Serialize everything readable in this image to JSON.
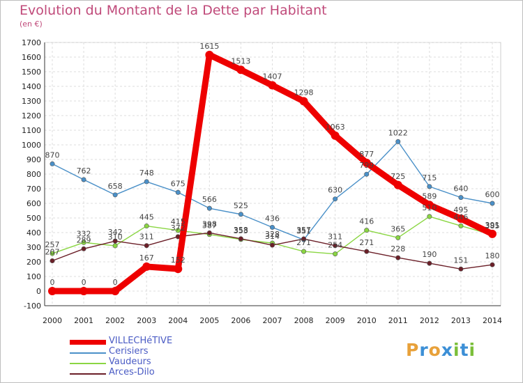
{
  "header": {
    "title": "Evolution du Montant de la Dette par Habitant",
    "subtitle": "(en €)"
  },
  "logo": {
    "text": "Proxiti",
    "letters": [
      "P",
      "r",
      "o",
      "x",
      "i",
      "t",
      "i"
    ],
    "colors": [
      "#e8a13a",
      "#3c8fd6",
      "#e8a13a",
      "#3c8fd6",
      "#7bbf3a",
      "#3c8fd6",
      "#7bbf3a"
    ]
  },
  "chart_data": {
    "type": "line",
    "title": "Evolution du Montant de la Dette par Habitant",
    "subtitle": "(en €)",
    "x": [
      2000,
      2001,
      2002,
      2003,
      2004,
      2005,
      2006,
      2007,
      2008,
      2009,
      2010,
      2011,
      2012,
      2013,
      2014
    ],
    "ylim": [
      -100,
      1700
    ],
    "yticks": [
      -100,
      0,
      100,
      200,
      300,
      400,
      500,
      600,
      700,
      800,
      900,
      1000,
      1100,
      1200,
      1300,
      1400,
      1500,
      1600,
      1700
    ],
    "grid": true,
    "legend_position": "bottom-left",
    "series": [
      {
        "name": "VILLECHéTIVE",
        "color": "#ee0000",
        "values": [
          0,
          0,
          0,
          167,
          152,
          1615,
          1513,
          1407,
          1298,
          1063,
          877,
          725,
          589,
          495,
          391
        ],
        "labels": [
          "0",
          "0",
          "0",
          "167",
          "152",
          "1615",
          "1513",
          "1407",
          "1298",
          "1063",
          "877",
          "725",
          "589",
          "495",
          "391"
        ]
      },
      {
        "name": "Cerisiers",
        "color": "#4a90c8",
        "values": [
          870,
          762,
          658,
          748,
          675,
          566,
          525,
          436,
          351,
          630,
          799,
          1022,
          715,
          640,
          600
        ],
        "labels": [
          "870",
          "762",
          "658",
          "748",
          "675",
          "566",
          "525",
          "436",
          "351",
          "630",
          "799",
          "1022",
          "715",
          "640",
          "600"
        ]
      },
      {
        "name": "Vaudeurs",
        "color": "#8ad642",
        "values": [
          257,
          332,
          310,
          445,
          415,
          387,
          353,
          328,
          271,
          254,
          416,
          365,
          510,
          446,
          385
        ],
        "labels": [
          "257",
          "332",
          "310",
          "445",
          "415",
          "387",
          "353",
          "328",
          "271",
          "254",
          "416",
          "365",
          "510",
          "446",
          "385"
        ]
      },
      {
        "name": "Arces-Dilo",
        "color": "#6b1f28",
        "values": [
          207,
          289,
          342,
          311,
          372,
          398,
          358,
          314,
          357,
          311,
          271,
          228,
          190,
          151,
          180
        ],
        "labels": [
          "207",
          "289",
          "342",
          "311",
          "372",
          "398",
          "358",
          "314",
          "357",
          "311",
          "271",
          "228",
          "190",
          "151",
          "180"
        ]
      }
    ]
  }
}
